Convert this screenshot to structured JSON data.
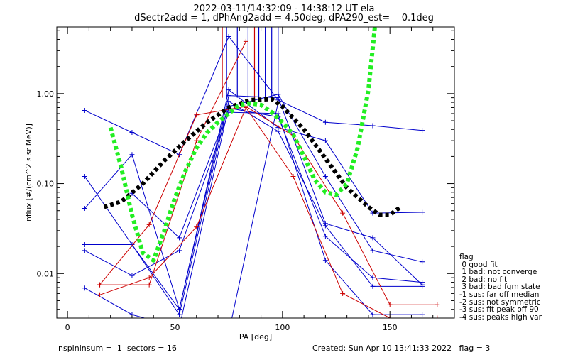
{
  "chart_data": {
    "type": "line",
    "title": "2022-03-11/14:32:09 - 14:38:12 UT ela",
    "subtitle": "dSectr2add = 1, dPhAng2add = 4.50deg, dPA290_est=    0.1deg",
    "xlabel": "PA [deg]",
    "ylabel": "nflux [#/(cm^2 s sr MeV)]",
    "xlim": [
      -5,
      180
    ],
    "ylim": [
      0.0032,
      5.5
    ],
    "yscale": "log",
    "x_ticks": [
      "0",
      "50",
      "100",
      "150"
    ],
    "y_ticks": [
      "0.01",
      "0.10",
      "1.00"
    ],
    "grid": false,
    "series": [
      {
        "color": "#0000cc",
        "x": [
          8,
          30,
          52,
          75,
          98,
          120,
          142,
          165
        ],
        "y": [
          0.65,
          0.37,
          0.21,
          4.3,
          0.85,
          0.48,
          0.44,
          0.39
        ]
      },
      {
        "color": "#0000cc",
        "x": [
          8,
          30,
          52,
          75,
          98,
          120,
          142,
          165
        ],
        "y": [
          0.12,
          0.021,
          0.004,
          1.1,
          0.42,
          0.3,
          0.047,
          0.048
        ]
      },
      {
        "color": "#0000cc",
        "x": [
          8,
          30,
          52,
          75,
          98,
          120,
          142,
          165
        ],
        "y": [
          0.053,
          0.21,
          0.004,
          0.95,
          0.9,
          0.036,
          0.025,
          0.0075
        ]
      },
      {
        "color": "#0000cc",
        "x": [
          8,
          30,
          52,
          75,
          98,
          120,
          142,
          165
        ],
        "y": [
          0.021,
          0.021,
          0.0035,
          0.82,
          0.38,
          0.034,
          0.0072,
          0.0072
        ]
      },
      {
        "color": "#0000cc",
        "x": [
          8,
          30,
          52,
          75,
          98,
          120,
          142,
          165
        ],
        "y": [
          0.018,
          0.0095,
          0.018,
          0.62,
          0.6,
          0.014,
          0.0035,
          0.0035
        ]
      },
      {
        "color": "#0000cc",
        "x": [
          8,
          30,
          52,
          75,
          98,
          120,
          142,
          165
        ],
        "y": [
          0.0069,
          0.0035,
          0.0025,
          0.72,
          0.98,
          0.12,
          0.018,
          0.0135
        ]
      },
      {
        "color": "#0000cc",
        "x": [
          30,
          52,
          75,
          98,
          120,
          142,
          165
        ],
        "y": [
          0.078,
          0.025,
          0.69,
          0.55,
          0.026,
          0.009,
          0.008
        ]
      },
      {
        "color": "#0000cc",
        "x": [
          75,
          98
        ],
        "y": [
          0.0022,
          0.8
        ]
      },
      {
        "color": "#cc0000",
        "x": [
          15,
          38,
          60,
          83,
          105,
          128,
          150,
          172
        ],
        "y": [
          0.0058,
          0.009,
          0.033,
          0.7,
          0.12,
          0.006,
          0.0032,
          0.0032
        ]
      },
      {
        "color": "#cc0000",
        "x": [
          15,
          38,
          60,
          83,
          105,
          128,
          150,
          172
        ],
        "y": [
          0.0075,
          0.035,
          0.58,
          0.72,
          0.34,
          0.047,
          0.0045,
          0.0045
        ]
      },
      {
        "color": "#cc0000",
        "x": [
          15,
          38,
          60,
          83
        ],
        "y": [
          0.0075,
          0.0075,
          0.3,
          3.8
        ]
      }
    ],
    "fits": [
      {
        "name": "",
        "color": "#000000",
        "x": [
          17,
          25,
          35,
          45,
          55,
          65,
          75,
          85,
          95,
          100,
          110,
          120,
          130,
          140,
          145,
          150,
          155
        ],
        "y": [
          0.055,
          0.063,
          0.1,
          0.18,
          0.3,
          0.48,
          0.7,
          0.85,
          0.87,
          0.72,
          0.4,
          0.19,
          0.09,
          0.055,
          0.045,
          0.045,
          0.055
        ]
      },
      {
        "name": "",
        "color": "#22ee22",
        "x": [
          20,
          25,
          30,
          35,
          40,
          45,
          50,
          55,
          60,
          65,
          70,
          75,
          80,
          85,
          90,
          95,
          100,
          105,
          110,
          115,
          120,
          125,
          130,
          135,
          140,
          143
        ],
        "y": [
          0.42,
          0.15,
          0.045,
          0.017,
          0.014,
          0.03,
          0.07,
          0.14,
          0.25,
          0.37,
          0.48,
          0.6,
          0.75,
          0.78,
          0.75,
          0.62,
          0.48,
          0.35,
          0.2,
          0.11,
          0.08,
          0.075,
          0.1,
          0.25,
          1.1,
          5.5
        ]
      }
    ],
    "vlines": {
      "blue": [
        74,
        79,
        84,
        89,
        92,
        95,
        98
      ],
      "red": [
        72,
        87
      ]
    }
  },
  "legend": {
    "title": "flag",
    "items": [
      " 0 good fit",
      " 1 bad: not converge",
      " 2 bad: no fit",
      " 3 bad: bad fgm state",
      "-1 sus: far off median",
      "-2 sus: not symmetric",
      "-3 sus: fit peak off 90",
      "-4 sus: peaks high var"
    ]
  },
  "footer": {
    "left": "nspininsum =  1  sectors = 16",
    "right": "Created: Sun Apr 10 13:41:33 2022   flag = 3"
  }
}
